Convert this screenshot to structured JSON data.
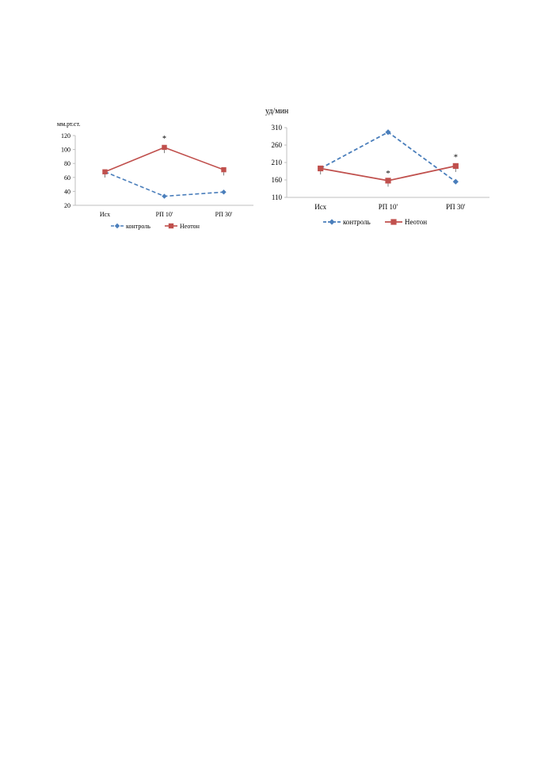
{
  "chart_data": [
    {
      "type": "line",
      "title": "",
      "ylabel": "мм.рт.ст.",
      "xlabel": "",
      "categories": [
        "Исх",
        "РП 10'",
        "РП 30'"
      ],
      "ylim": [
        20,
        120
      ],
      "yticks": [
        20,
        40,
        60,
        80,
        100,
        120
      ],
      "grid": false,
      "legend": "bottom",
      "series": [
        {
          "name": "контроль",
          "values": [
            68,
            33,
            39
          ],
          "color": "#4a7ebb",
          "style": "dashed",
          "marker": "diamond"
        },
        {
          "name": "Неотон",
          "values": [
            68,
            103,
            71
          ],
          "color": "#c0504d",
          "style": "solid",
          "marker": "square"
        }
      ],
      "annotations": [
        {
          "text": "*",
          "category": "РП 10'",
          "series": "Неотон"
        }
      ]
    },
    {
      "type": "line",
      "title": "",
      "ylabel": "уд/мин",
      "xlabel": "",
      "categories": [
        "Исх",
        "РП 10'",
        "РП 30'"
      ],
      "ylim": [
        110,
        310
      ],
      "yticks": [
        110,
        160,
        210,
        260,
        310
      ],
      "grid": false,
      "legend": "bottom",
      "series": [
        {
          "name": "контроль",
          "values": [
            193,
            297,
            155
          ],
          "color": "#4a7ebb",
          "style": "dashed",
          "marker": "diamond"
        },
        {
          "name": "Неотон",
          "values": [
            193,
            158,
            200
          ],
          "color": "#c0504d",
          "style": "solid",
          "marker": "square"
        }
      ],
      "annotations": [
        {
          "text": "*",
          "category": "РП 10'",
          "series": "Неотон"
        },
        {
          "text": "*",
          "category": "РП 30'",
          "series": "Неотон"
        }
      ]
    }
  ]
}
